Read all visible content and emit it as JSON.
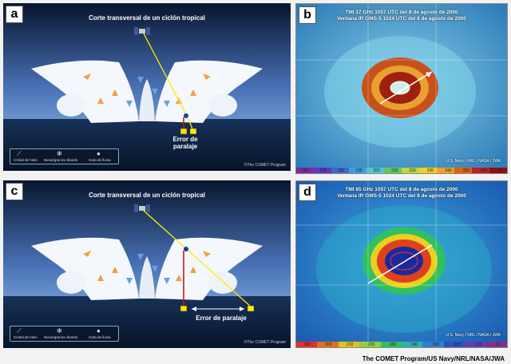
{
  "panels": {
    "a": {
      "letter": "a",
      "title": "Corte transversal de un ciclón tropical",
      "error_label": "Error de paralaje",
      "legend": {
        "ice": "Cristal de hielo",
        "snow": "Nieve/granizo blando",
        "rain": "Gota de lluvia"
      },
      "copyright": "©The COMET Program"
    },
    "b": {
      "letter": "b",
      "title_line1": "TMI 37 GHz 1057 UTC del 8 de agosto de 2000",
      "title_line2": "Ventana IR GMS-5 1024 UTC del 8 de agosto de 2000",
      "source": "U.S. Navy / NRL / NASA / JWA",
      "scale": [
        "160",
        "170",
        "180",
        "190",
        "200",
        "210",
        "220",
        "230",
        "240",
        "250",
        "260",
        "K"
      ]
    },
    "c": {
      "letter": "c",
      "title": "Corte transversal de un ciclón tropical",
      "error_label": "Error de paralaje",
      "legend": {
        "ice": "Cristal de hielo",
        "snow": "Nieve/granizo blando",
        "rain": "Gota de lluvia"
      },
      "copyright": "©The COMET Program"
    },
    "d": {
      "letter": "d",
      "title_line1": "TMI 85 GHz 1057 UTC del 8 de agosto de 2000",
      "title_line2": "Ventana IR GMS-5 1024 UTC del 8 de agosto de 2000",
      "source": "U.S. Navy / NRL / NASA / JWA",
      "scale": [
        "190",
        "200",
        "210",
        "220",
        "230",
        "240",
        "250",
        "260",
        "270",
        "K"
      ]
    }
  },
  "credit": "The COMET Program/US Navy/NRL/NASA/JWA",
  "colors": {
    "sky_top": "#0b1a3a",
    "sky_bottom": "#5a86c8",
    "sea": "#0b1f3a",
    "sight_line": "#ffee00",
    "vertical_line": "#cc1111"
  }
}
